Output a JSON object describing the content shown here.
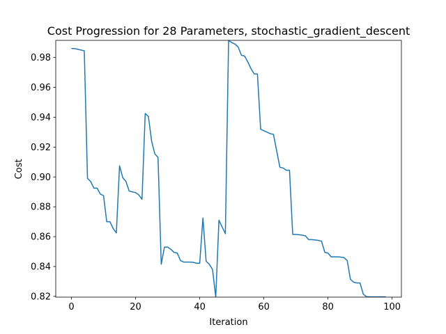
{
  "chart_data": {
    "type": "line",
    "title": "Cost Progression for 28 Parameters, stochastic_gradient_descent",
    "xlabel": "Iteration",
    "ylabel": "Cost",
    "xlim": [
      -4.9,
      102.9
    ],
    "ylim": [
      0.8195,
      0.9915
    ],
    "xticks": [
      0,
      20,
      40,
      60,
      80,
      100
    ],
    "yticks": [
      0.82,
      0.84,
      0.86,
      0.88,
      0.9,
      0.92,
      0.94,
      0.96,
      0.98
    ],
    "ytick_labels": [
      "0.82",
      "0.84",
      "0.86",
      "0.88",
      "0.90",
      "0.92",
      "0.94",
      "0.96",
      "0.98"
    ],
    "grid": false,
    "line_color": "#1f77b4",
    "series": [
      {
        "x": [
          0,
          1,
          2,
          3,
          4,
          5,
          6,
          7,
          8,
          9,
          10,
          11,
          12,
          13,
          14,
          15,
          16,
          17,
          18,
          19,
          20,
          21,
          22,
          23,
          24,
          25,
          26,
          27,
          28,
          29,
          30,
          31,
          32,
          33,
          34,
          35,
          36,
          37,
          38,
          39,
          40,
          41,
          42,
          43,
          44,
          45,
          46,
          47,
          48,
          49,
          50,
          51,
          52,
          53,
          54,
          55,
          56,
          57,
          58,
          59,
          60,
          61,
          62,
          63,
          64,
          65,
          66,
          67,
          68,
          69,
          70,
          71,
          72,
          73,
          74,
          75,
          76,
          77,
          78,
          79,
          80,
          81,
          82,
          83,
          84,
          85,
          86,
          87,
          88,
          89,
          90,
          91,
          92,
          93,
          94,
          95,
          96,
          97,
          98
        ],
        "values": [
          0.986,
          0.986,
          0.9855,
          0.985,
          0.9845,
          0.899,
          0.897,
          0.8925,
          0.8925,
          0.8885,
          0.8875,
          0.87,
          0.87,
          0.8655,
          0.8625,
          0.9075,
          0.8995,
          0.897,
          0.8905,
          0.89,
          0.8895,
          0.888,
          0.885,
          0.9425,
          0.9405,
          0.924,
          0.9155,
          0.913,
          0.8415,
          0.853,
          0.853,
          0.8515,
          0.8495,
          0.849,
          0.844,
          0.843,
          0.843,
          0.843,
          0.8428,
          0.8422,
          0.8422,
          0.8725,
          0.8435,
          0.8415,
          0.838,
          0.8195,
          0.871,
          0.8665,
          0.862,
          0.9915,
          0.99,
          0.989,
          0.987,
          0.9815,
          0.981,
          0.977,
          0.9725,
          0.969,
          0.969,
          0.932,
          0.931,
          0.93,
          0.929,
          0.9285,
          0.9175,
          0.9065,
          0.906,
          0.9045,
          0.9045,
          0.8615,
          0.8615,
          0.8613,
          0.861,
          0.8605,
          0.858,
          0.858,
          0.8578,
          0.8575,
          0.857,
          0.8495,
          0.849,
          0.8465,
          0.8465,
          0.8465,
          0.8463,
          0.846,
          0.844,
          0.8315,
          0.8295,
          0.829,
          0.829,
          0.8215,
          0.8198,
          0.8197,
          0.8197,
          0.8197,
          0.8197,
          0.8197,
          0.8197
        ]
      }
    ]
  }
}
